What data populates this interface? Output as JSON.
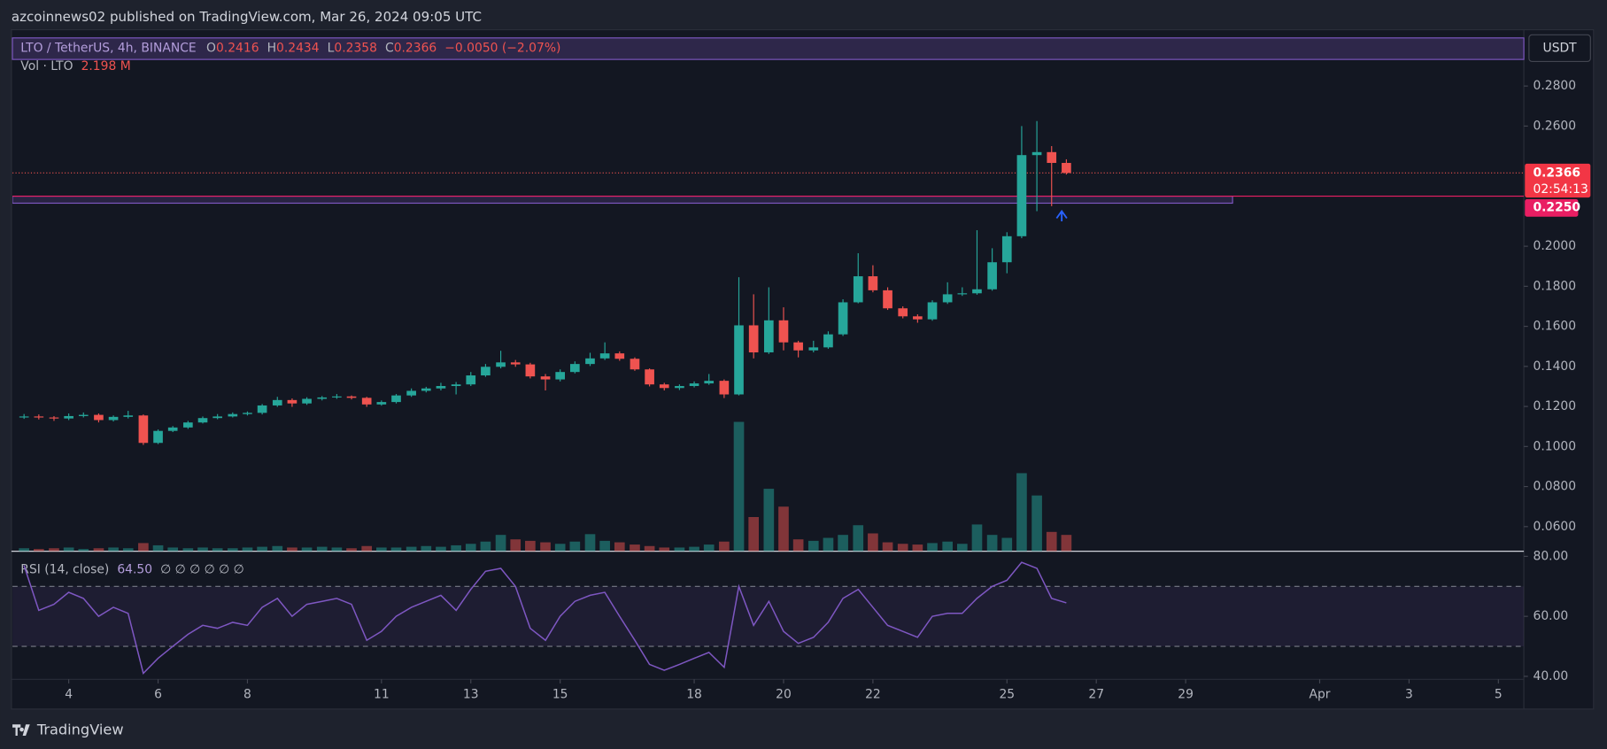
{
  "header": {
    "published": "azcoinnews02 published on TradingView.com, Mar 26, 2024 09:05 UTC",
    "brand": "TradingView"
  },
  "chart_data": {
    "type": "candlestick",
    "symbol": "LTO / TetherUS, 4h, BINANCE",
    "legend": {
      "o_label": "O",
      "open": "0.2416",
      "h_label": "H",
      "high": "0.2434",
      "l_label": "L",
      "low": "0.2358",
      "c_label": "C",
      "close": "0.2366",
      "change": "−0.0050 (−2.07%)"
    },
    "volume_title": "Vol · LTO",
    "volume_last": "2.198 M",
    "currency": "USDT",
    "countdown": "02:54:13",
    "up_color": "#26a69a",
    "down_color": "#ef5350",
    "grid": false,
    "x": [
      3,
      3.33,
      3.67,
      4,
      4.33,
      4.67,
      5,
      5.33,
      5.67,
      6,
      6.33,
      6.67,
      7,
      7.33,
      7.67,
      8,
      8.33,
      8.67,
      9,
      9.33,
      9.67,
      10,
      10.33,
      10.67,
      11,
      11.33,
      11.67,
      12,
      12.33,
      12.67,
      13,
      13.33,
      13.67,
      14,
      14.33,
      14.67,
      15,
      15.33,
      15.67,
      16,
      16.33,
      16.67,
      17,
      17.33,
      17.67,
      18,
      18.33,
      18.67,
      19,
      19.33,
      19.67,
      20,
      20.33,
      20.67,
      21,
      21.33,
      21.67,
      22,
      22.33,
      22.67,
      23,
      23.33,
      23.67,
      24,
      24.33,
      24.67,
      25,
      25.33,
      25.67,
      26,
      26.33
    ],
    "open": [
      0.1148,
      0.115,
      0.1145,
      0.114,
      0.1152,
      0.1158,
      0.1132,
      0.1148,
      0.1155,
      0.1018,
      0.1078,
      0.1095,
      0.112,
      0.1142,
      0.115,
      0.1162,
      0.1168,
      0.1205,
      0.1232,
      0.1215,
      0.1238,
      0.1245,
      0.125,
      0.1243,
      0.121,
      0.1222,
      0.1255,
      0.1278,
      0.129,
      0.1302,
      0.131,
      0.1355,
      0.1398,
      0.142,
      0.141,
      0.135,
      0.1335,
      0.1372,
      0.1412,
      0.144,
      0.1465,
      0.1438,
      0.1385,
      0.131,
      0.1292,
      0.1302,
      0.1315,
      0.1328,
      0.126,
      0.1605,
      0.147,
      0.163,
      0.152,
      0.148,
      0.1495,
      0.156,
      0.172,
      0.185,
      0.178,
      0.169,
      0.165,
      0.1635,
      0.172,
      0.176,
      0.1765,
      0.1785,
      0.192,
      0.205,
      0.2455,
      0.247,
      0.2416
    ],
    "high": [
      0.1162,
      0.116,
      0.1152,
      0.1165,
      0.117,
      0.1165,
      0.1155,
      0.1178,
      0.116,
      0.1085,
      0.1102,
      0.1128,
      0.115,
      0.1162,
      0.117,
      0.1175,
      0.1212,
      0.1248,
      0.124,
      0.1246,
      0.1252,
      0.1262,
      0.1255,
      0.1248,
      0.123,
      0.1262,
      0.129,
      0.1298,
      0.1318,
      0.1322,
      0.1372,
      0.1412,
      0.1478,
      0.1432,
      0.1418,
      0.1362,
      0.1385,
      0.1425,
      0.1468,
      0.152,
      0.1475,
      0.1445,
      0.139,
      0.1318,
      0.131,
      0.1325,
      0.1362,
      0.1335,
      0.1845,
      0.176,
      0.1795,
      0.1695,
      0.1528,
      0.1528,
      0.1575,
      0.1735,
      0.1965,
      0.1905,
      0.1795,
      0.17,
      0.166,
      0.173,
      0.182,
      0.1795,
      0.208,
      0.199,
      0.207,
      0.26,
      0.2625,
      0.25,
      0.2434
    ],
    "low": [
      0.1138,
      0.1135,
      0.1128,
      0.1132,
      0.1145,
      0.112,
      0.1125,
      0.114,
      0.1008,
      0.1012,
      0.1072,
      0.1088,
      0.1115,
      0.1136,
      0.1145,
      0.1155,
      0.116,
      0.1198,
      0.1198,
      0.1208,
      0.123,
      0.1238,
      0.1235,
      0.1198,
      0.1204,
      0.1215,
      0.1248,
      0.127,
      0.128,
      0.126,
      0.1302,
      0.1348,
      0.139,
      0.1398,
      0.134,
      0.128,
      0.1325,
      0.1365,
      0.1402,
      0.1432,
      0.1428,
      0.1378,
      0.13,
      0.128,
      0.1282,
      0.1295,
      0.1308,
      0.1242,
      0.1255,
      0.144,
      0.1462,
      0.148,
      0.1445,
      0.147,
      0.1488,
      0.1552,
      0.1715,
      0.177,
      0.1682,
      0.164,
      0.1618,
      0.1628,
      0.1712,
      0.1752,
      0.1758,
      0.1778,
      0.1865,
      0.204,
      0.2175,
      0.22,
      0.2358
    ],
    "close": [
      0.115,
      0.1145,
      0.114,
      0.1152,
      0.1158,
      0.1132,
      0.1148,
      0.1155,
      0.1018,
      0.1078,
      0.1095,
      0.112,
      0.1142,
      0.115,
      0.1162,
      0.1168,
      0.1205,
      0.1232,
      0.1215,
      0.1238,
      0.1245,
      0.125,
      0.1243,
      0.121,
      0.1222,
      0.1255,
      0.1278,
      0.129,
      0.1302,
      0.131,
      0.1355,
      0.1398,
      0.142,
      0.141,
      0.135,
      0.1335,
      0.1372,
      0.1412,
      0.144,
      0.1465,
      0.1438,
      0.1385,
      0.131,
      0.1292,
      0.1302,
      0.1315,
      0.1328,
      0.126,
      0.1605,
      0.147,
      0.163,
      0.152,
      0.148,
      0.1495,
      0.156,
      0.172,
      0.185,
      0.178,
      0.169,
      0.165,
      0.1635,
      0.172,
      0.176,
      0.1765,
      0.1785,
      0.192,
      0.205,
      0.2455,
      0.247,
      0.2416,
      0.2366
    ],
    "volume": [
      0.4,
      0.3,
      0.4,
      0.5,
      0.3,
      0.4,
      0.5,
      0.4,
      1.1,
      0.8,
      0.5,
      0.4,
      0.5,
      0.4,
      0.4,
      0.5,
      0.6,
      0.7,
      0.5,
      0.5,
      0.6,
      0.5,
      0.4,
      0.7,
      0.5,
      0.5,
      0.6,
      0.7,
      0.6,
      0.8,
      1.0,
      1.3,
      2.2,
      1.6,
      1.4,
      1.2,
      1.0,
      1.3,
      2.3,
      1.4,
      1.2,
      0.9,
      0.7,
      0.5,
      0.5,
      0.6,
      0.9,
      1.3,
      17.4,
      4.6,
      8.4,
      6.0,
      1.6,
      1.4,
      1.8,
      2.2,
      3.5,
      2.4,
      1.2,
      1.0,
      0.9,
      1.1,
      1.3,
      1.0,
      3.6,
      2.2,
      1.8,
      10.5,
      7.5,
      2.6,
      2.198
    ],
    "volume_ylim": [
      0,
      70
    ],
    "xlim": [
      2.74,
      36.57
    ],
    "xticks": [
      4,
      6,
      8,
      11,
      13,
      15,
      18,
      20,
      22,
      25,
      27,
      29,
      {
        "value": 32,
        "label": "Apr"
      },
      {
        "value": 34,
        "label": "3"
      },
      {
        "value": 36,
        "label": "5"
      }
    ],
    "ylim": [
      0.0477,
      0.3076
    ],
    "yticks": [
      {
        "value": 0.06,
        "label": "0.0600"
      },
      {
        "value": 0.08,
        "label": "0.0800"
      },
      {
        "value": 0.1,
        "label": "0.1000"
      },
      {
        "value": 0.12,
        "label": "0.1200"
      },
      {
        "value": 0.14,
        "label": "0.1400"
      },
      {
        "value": 0.16,
        "label": "0.1600"
      },
      {
        "value": 0.18,
        "label": "0.1800"
      },
      {
        "value": 0.2,
        "label": "0.2000"
      },
      {
        "value": 0.26,
        "label": "0.2600"
      },
      {
        "value": 0.28,
        "label": "0.2800"
      }
    ],
    "last_price": {
      "value": 0.2366,
      "label": "0.2366"
    },
    "support_zone": {
      "low": 0.2215,
      "high": 0.225,
      "x_end": 30.05,
      "label": {
        "value": 0.225,
        "label": "0.2250"
      }
    },
    "rsi": {
      "title": "RSI (14, close)",
      "last": "64.50",
      "placeholders": "∅ ∅ ∅ ∅ ∅ ∅",
      "color": "#7e57c2",
      "values": [
        77,
        62,
        64,
        68,
        66,
        60,
        63,
        61,
        41,
        46,
        50,
        54,
        57,
        56,
        58,
        57,
        63,
        66,
        60,
        64,
        65,
        66,
        64,
        52,
        55,
        60,
        63,
        65,
        67,
        62,
        69,
        75,
        76,
        70,
        56,
        52,
        60,
        65,
        67,
        68,
        60,
        52,
        44,
        42,
        44,
        46,
        48,
        43,
        70,
        57,
        65,
        55,
        51,
        53,
        58,
        66,
        69,
        63,
        57,
        55,
        53,
        60,
        61,
        61,
        66,
        70,
        72,
        78,
        76,
        66,
        64.5
      ],
      "ylim": [
        39,
        81.7
      ],
      "yticks": [
        {
          "value": 80,
          "label": "80.00"
        },
        {
          "value": 60,
          "label": "60.00"
        },
        {
          "value": 40,
          "label": "40.00"
        }
      ],
      "band": [
        50,
        70
      ]
    }
  }
}
